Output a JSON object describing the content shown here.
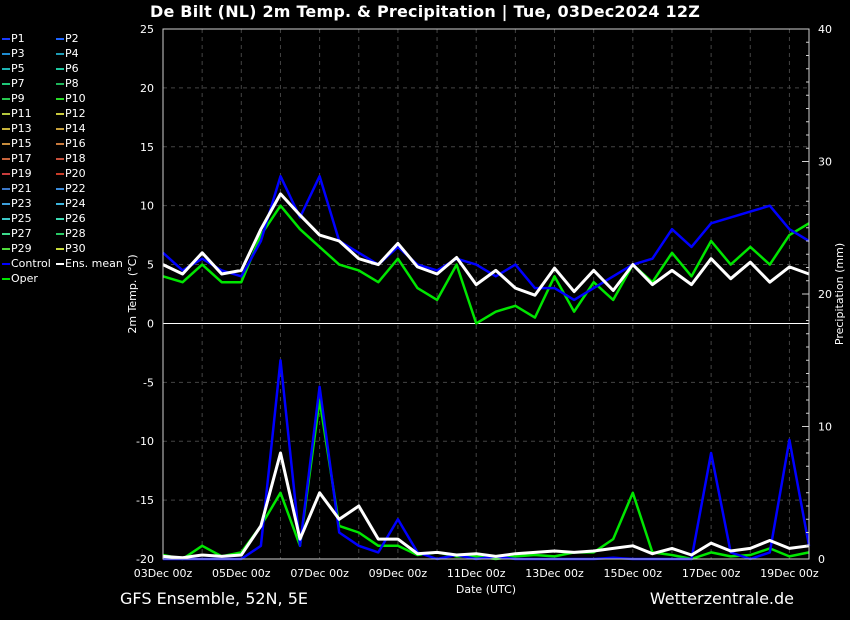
{
  "chart_data": {
    "type": "line",
    "title": "De Bilt  (NL)  2m Temp. & Precipitation | Tue, 03Dec2024 12Z",
    "footer_left": "GFS Ensemble, 52N, 5E",
    "footer_right": "Wetterzentrale.de",
    "xlabel": "Date (UTC)",
    "ylabel": "2m Temp. (°C)",
    "y2label": "Precipitation (mm)",
    "xlim": [
      0,
      16.5
    ],
    "ylim": [
      -20,
      25
    ],
    "y2lim": [
      0,
      40
    ],
    "x_ticks": [
      {
        "x": 0,
        "label": "03Dec 00z"
      },
      {
        "x": 2,
        "label": "05Dec 00z"
      },
      {
        "x": 4,
        "label": "07Dec 00z"
      },
      {
        "x": 6,
        "label": "09Dec 00z"
      },
      {
        "x": 8,
        "label": "11Dec 00z"
      },
      {
        "x": 10,
        "label": "13Dec 00z"
      },
      {
        "x": 12,
        "label": "15Dec 00z"
      },
      {
        "x": 14,
        "label": "17Dec 00z"
      },
      {
        "x": 16,
        "label": "19Dec 00z"
      }
    ],
    "y_ticks": [
      "25",
      "20",
      "15",
      "10",
      "5",
      "0",
      "-5",
      "-10",
      "-15",
      "-20"
    ],
    "y2_ticks": [
      "40",
      "30",
      "20",
      "10",
      "0"
    ],
    "grid": true,
    "legend_position": "left",
    "legend": [
      {
        "name": "P1",
        "color": "#1a3cff"
      },
      {
        "name": "P2",
        "color": "#1e64ff"
      },
      {
        "name": "P3",
        "color": "#1e8cd2"
      },
      {
        "name": "P4",
        "color": "#1e9bb4"
      },
      {
        "name": "P5",
        "color": "#1eb4b4"
      },
      {
        "name": "P6",
        "color": "#1ec8a0"
      },
      {
        "name": "P7",
        "color": "#1ec878"
      },
      {
        "name": "P8",
        "color": "#1eb45a"
      },
      {
        "name": "P9",
        "color": "#28c850"
      },
      {
        "name": "P10",
        "color": "#28dc28"
      },
      {
        "name": "P11",
        "color": "#b4c83c"
      },
      {
        "name": "P12",
        "color": "#c8c83c"
      },
      {
        "name": "P13",
        "color": "#c8b43c"
      },
      {
        "name": "P14",
        "color": "#c8a03c"
      },
      {
        "name": "P15",
        "color": "#c88c3c"
      },
      {
        "name": "P16",
        "color": "#c8783c"
      },
      {
        "name": "P17",
        "color": "#c8643c"
      },
      {
        "name": "P18",
        "color": "#c8503c"
      },
      {
        "name": "P19",
        "color": "#c83c3c"
      },
      {
        "name": "P20",
        "color": "#c83c28"
      },
      {
        "name": "P21",
        "color": "#3c78c8"
      },
      {
        "name": "P22",
        "color": "#3c8cdc"
      },
      {
        "name": "P23",
        "color": "#3ca0dc"
      },
      {
        "name": "P24",
        "color": "#3cb4dc"
      },
      {
        "name": "P25",
        "color": "#3cc8c8"
      },
      {
        "name": "P26",
        "color": "#3cdcb4"
      },
      {
        "name": "P27",
        "color": "#3cdc8c"
      },
      {
        "name": "P28",
        "color": "#28c864"
      },
      {
        "name": "P29",
        "color": "#50dc3c"
      },
      {
        "name": "P30",
        "color": "#c8dc3c"
      },
      {
        "name": "Control",
        "color": "#0000ff"
      },
      {
        "name": "Ens. mean",
        "color": "#ffffff"
      },
      {
        "name": "Oper",
        "color": "#00e600"
      }
    ],
    "series": [
      {
        "name": "Control",
        "role": "temperature",
        "x": [
          0,
          0.5,
          1,
          1.5,
          2,
          2.5,
          3,
          3.5,
          4,
          4.5,
          5,
          5.5,
          6,
          6.5,
          7,
          7.5,
          8,
          8.5,
          9,
          9.5,
          10,
          10.5,
          11,
          11.5,
          12,
          12.5,
          13,
          13.5,
          14,
          14.5,
          15,
          15.5,
          16,
          16.5
        ],
        "values": [
          6,
          4.5,
          5.5,
          4.5,
          4,
          7,
          12.5,
          9,
          12.5,
          7,
          6,
          5,
          6.5,
          5,
          4.5,
          5.5,
          5,
          4,
          5,
          3,
          3,
          2,
          3,
          4,
          5,
          5.5,
          8,
          6.5,
          8.5,
          9,
          9.5,
          10,
          8,
          7
        ]
      },
      {
        "name": "Ens. mean",
        "role": "temperature",
        "x": [
          0,
          0.5,
          1,
          1.5,
          2,
          2.5,
          3,
          3.5,
          4,
          4.5,
          5,
          5.5,
          6,
          6.5,
          7,
          7.5,
          8,
          8.5,
          9,
          9.5,
          10,
          10.5,
          11,
          11.5,
          12,
          12.5,
          13,
          13.5,
          14,
          14.5,
          15,
          15.5,
          16,
          16.5
        ],
        "values": [
          5,
          4.2,
          6,
          4.2,
          4.5,
          8,
          11,
          9.2,
          7.5,
          7,
          5.5,
          5,
          6.8,
          4.8,
          4.2,
          5.6,
          3.3,
          4.5,
          3,
          2.4,
          4.7,
          2.7,
          4.5,
          2.8,
          5,
          3.3,
          4.5,
          3.3,
          5.5,
          3.8,
          5.2,
          3.5,
          4.8,
          4.2
        ]
      },
      {
        "name": "Oper",
        "role": "temperature",
        "x": [
          0,
          0.5,
          1,
          1.5,
          2,
          2.5,
          3,
          3.5,
          4,
          4.5,
          5,
          5.5,
          6,
          6.5,
          7,
          7.5,
          8,
          8.5,
          9,
          9.5,
          10,
          10.5,
          11,
          11.5,
          12,
          12.5,
          13,
          13.5,
          14,
          14.5,
          15,
          15.5,
          16,
          16.5
        ],
        "values": [
          4,
          3.5,
          5,
          3.5,
          3.5,
          7.5,
          10,
          8,
          6.5,
          5,
          4.5,
          3.5,
          5.5,
          3,
          2,
          5,
          0,
          1,
          1.5,
          0.5,
          4,
          1,
          3.5,
          2,
          5,
          3.5,
          6,
          4,
          7,
          5,
          6.5,
          5,
          7.5,
          8.5
        ]
      },
      {
        "name": "Control",
        "role": "precipitation",
        "x": [
          0,
          0.5,
          1,
          1.5,
          2,
          2.5,
          3,
          3.5,
          4,
          4.5,
          5,
          5.5,
          6,
          6.5,
          7,
          7.5,
          8,
          8.5,
          9,
          9.5,
          10,
          10.5,
          11,
          11.5,
          12,
          12.5,
          13,
          13.5,
          14,
          14.5,
          15,
          15.5,
          16,
          16.5
        ],
        "values": [
          0,
          0,
          0,
          0,
          0,
          1,
          15,
          1,
          13,
          2,
          1,
          0.5,
          3,
          0.5,
          0,
          0.3,
          0,
          0.2,
          0,
          0,
          0,
          0,
          0,
          0.1,
          0,
          0,
          0,
          0,
          8,
          0.5,
          0,
          0.5,
          9,
          1
        ]
      },
      {
        "name": "Ens. mean",
        "role": "precipitation",
        "x": [
          0,
          0.5,
          1,
          1.5,
          2,
          2.5,
          3,
          3.5,
          4,
          4.5,
          5,
          5.5,
          6,
          6.5,
          7,
          7.5,
          8,
          8.5,
          9,
          9.5,
          10,
          10.5,
          11,
          11.5,
          12,
          12.5,
          13,
          13.5,
          14,
          14.5,
          15,
          15.5,
          16,
          16.5
        ],
        "values": [
          0.2,
          0.1,
          0.3,
          0.2,
          0.3,
          2.5,
          8,
          1.5,
          5,
          3,
          4,
          1.5,
          1.5,
          0.4,
          0.5,
          0.3,
          0.4,
          0.2,
          0.4,
          0.5,
          0.6,
          0.5,
          0.6,
          0.8,
          1,
          0.4,
          0.8,
          0.3,
          1.2,
          0.6,
          0.8,
          1.4,
          0.8,
          1
        ]
      },
      {
        "name": "Oper",
        "role": "precipitation",
        "x": [
          0,
          0.5,
          1,
          1.5,
          2,
          2.5,
          3,
          3.5,
          4,
          4.5,
          5,
          5.5,
          6,
          6.5,
          7,
          7.5,
          8,
          8.5,
          9,
          9.5,
          10,
          10.5,
          11,
          11.5,
          12,
          12.5,
          13,
          13.5,
          14,
          14.5,
          15,
          15.5,
          16,
          16.5
        ],
        "values": [
          0.3,
          0,
          1,
          0.2,
          0.5,
          2.5,
          5,
          1,
          12,
          2.5,
          2,
          1,
          1,
          0.3,
          0.5,
          0.2,
          0.2,
          0,
          0.2,
          0.3,
          0.2,
          0.5,
          0.5,
          1.5,
          5,
          0.5,
          0.3,
          0,
          0.5,
          0.2,
          0.3,
          0.8,
          0.2,
          0.5
        ]
      }
    ]
  }
}
